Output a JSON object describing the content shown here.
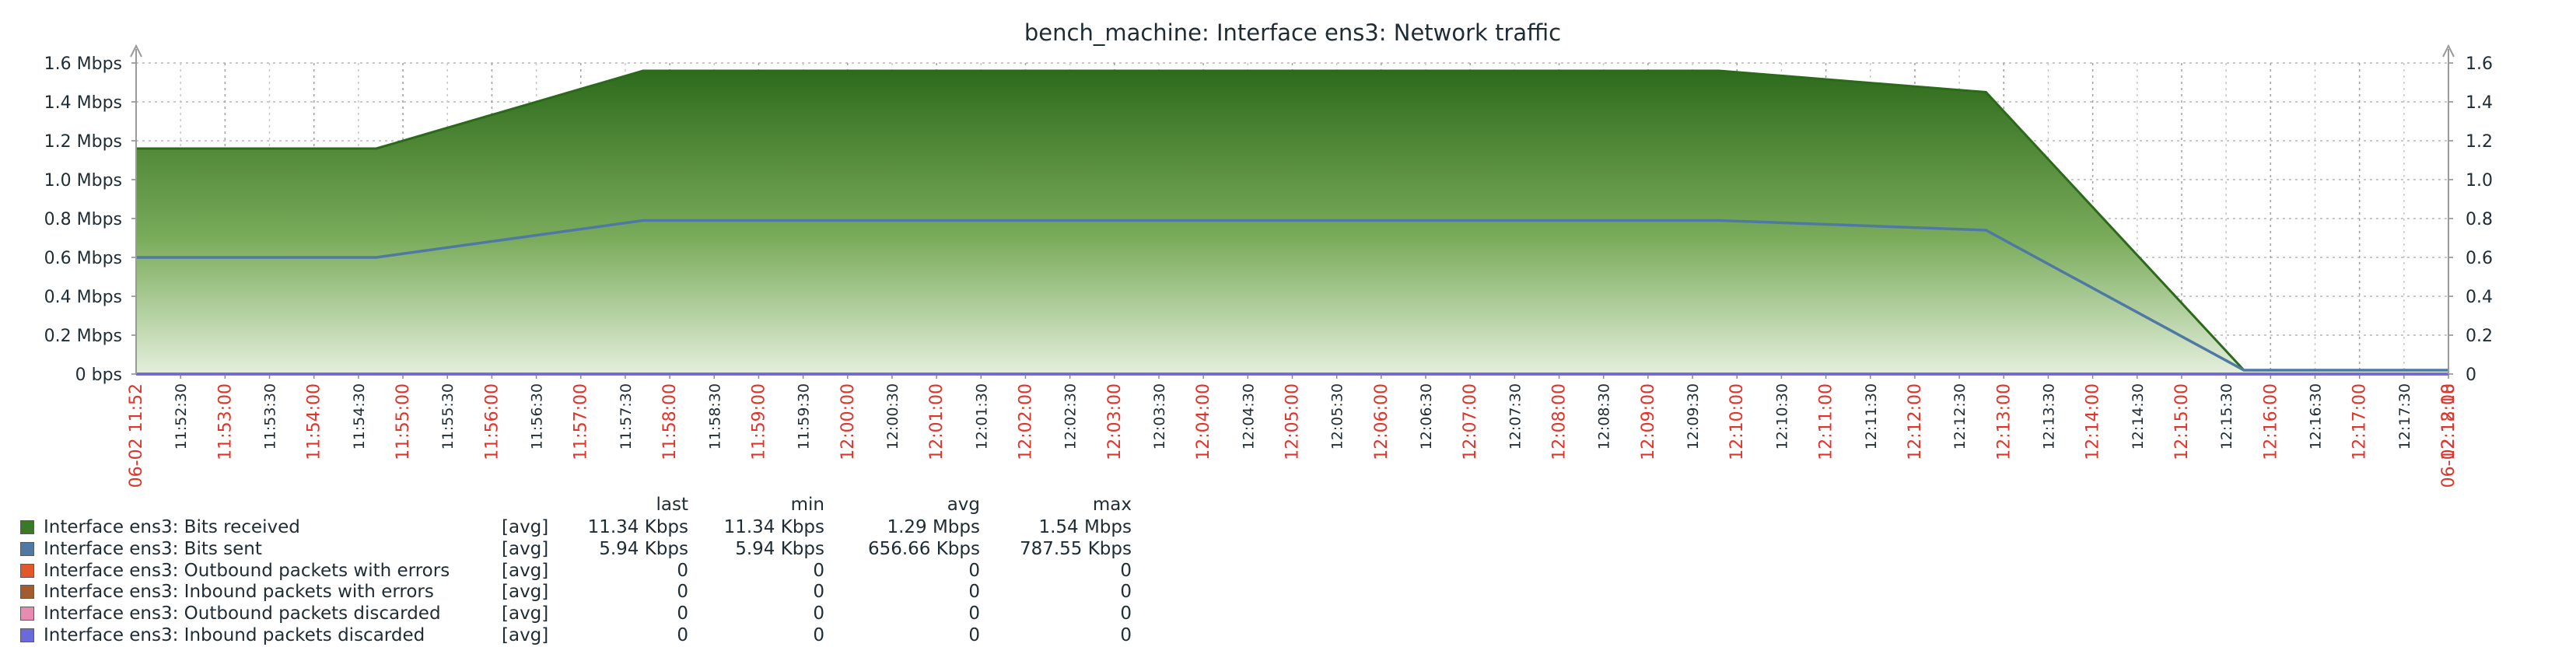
{
  "chart_data": {
    "type": "area",
    "title": "bench_machine: Interface ens3: Network traffic",
    "y_left": {
      "range_mbps": [
        0,
        1.6
      ],
      "tick_values": [
        0,
        0.2,
        0.4,
        0.6,
        0.8,
        1.0,
        1.2,
        1.4,
        1.6
      ],
      "tick_labels": [
        "0 bps",
        "0.2 Mbps",
        "0.4 Mbps",
        "0.6 Mbps",
        "0.8 Mbps",
        "1.0 Mbps",
        "1.2 Mbps",
        "1.4 Mbps",
        "1.6 Mbps"
      ]
    },
    "y_right": {
      "tick_labels": [
        "0",
        "0.2",
        "0.4",
        "0.6",
        "0.8",
        "1.0",
        "1.2",
        "1.4",
        "1.6"
      ]
    },
    "x_axis": {
      "start_label": "06-02 11:52",
      "end_label": "06-02 12:18",
      "start_minute": 0,
      "end_minute": 26,
      "tick_labels": [
        "11:52:30",
        "11:53:00",
        "11:53:30",
        "11:54:00",
        "11:54:30",
        "11:55:00",
        "11:55:30",
        "11:56:00",
        "11:56:30",
        "11:57:00",
        "11:57:30",
        "11:58:00",
        "11:58:30",
        "11:59:00",
        "11:59:30",
        "12:00:00",
        "12:00:30",
        "12:01:00",
        "12:01:30",
        "12:02:00",
        "12:02:30",
        "12:03:00",
        "12:03:30",
        "12:04:00",
        "12:04:30",
        "12:05:00",
        "12:05:30",
        "12:06:00",
        "12:06:30",
        "12:07:00",
        "12:07:30",
        "12:08:00",
        "12:08:30",
        "12:09:00",
        "12:09:30",
        "12:10:00",
        "12:10:30",
        "12:11:00",
        "12:11:30",
        "12:12:00",
        "12:12:30",
        "12:13:00",
        "12:13:30",
        "12:14:00",
        "12:14:30",
        "12:15:00",
        "12:15:30",
        "12:16:00",
        "12:16:30",
        "12:17:00",
        "12:17:30",
        "12:18:00"
      ]
    },
    "grid": true,
    "series": [
      {
        "name": "Interface ens3: Bits received",
        "color": "#3a7a26",
        "style": "filled-area",
        "points_mbps": [
          [
            0,
            1.16
          ],
          [
            2.7,
            1.16
          ],
          [
            5.7,
            1.56
          ],
          [
            10,
            1.56
          ],
          [
            12.5,
            1.56
          ],
          [
            17.8,
            1.56
          ],
          [
            20.8,
            1.45
          ],
          [
            23.7,
            0.02
          ],
          [
            26,
            0.02
          ]
        ]
      },
      {
        "name": "Interface ens3: Bits sent",
        "color": "#4f79a4",
        "style": "line",
        "points_mbps": [
          [
            0,
            0.6
          ],
          [
            2.7,
            0.6
          ],
          [
            5.7,
            0.79
          ],
          [
            17.8,
            0.79
          ],
          [
            20.8,
            0.74
          ],
          [
            23.7,
            0.02
          ],
          [
            26,
            0.02
          ]
        ]
      },
      {
        "name": "Interface ens3: Outbound packets with errors",
        "color": "#e2572b",
        "style": "line",
        "points_mbps": [
          [
            0,
            0
          ],
          [
            26,
            0
          ]
        ]
      },
      {
        "name": "Interface ens3: Inbound packets with errors",
        "color": "#a35c2e",
        "style": "line",
        "points_mbps": [
          [
            0,
            0
          ],
          [
            26,
            0
          ]
        ]
      },
      {
        "name": "Interface ens3: Outbound packets discarded",
        "color": "#e88bb0",
        "style": "line",
        "points_mbps": [
          [
            0,
            0
          ],
          [
            26,
            0
          ]
        ]
      },
      {
        "name": "Interface ens3: Inbound packets discarded",
        "color": "#6a6adb",
        "style": "line",
        "points_mbps": [
          [
            0,
            0
          ],
          [
            26,
            0
          ]
        ]
      }
    ]
  },
  "legend": {
    "columns": [
      "last",
      "min",
      "avg",
      "max"
    ],
    "rows": [
      {
        "name": "Interface ens3: Bits received",
        "func": "[avg]",
        "color": "#3a7a26",
        "last": "11.34 Kbps",
        "min": "11.34 Kbps",
        "avg": "1.29 Mbps",
        "max": "1.54 Mbps"
      },
      {
        "name": "Interface ens3: Bits sent",
        "func": "[avg]",
        "color": "#4f79a4",
        "last": "5.94 Kbps",
        "min": "5.94 Kbps",
        "avg": "656.66 Kbps",
        "max": "787.55 Kbps"
      },
      {
        "name": "Interface ens3: Outbound packets with errors",
        "func": "[avg]",
        "color": "#e2572b",
        "last": "0",
        "min": "0",
        "avg": "0",
        "max": "0"
      },
      {
        "name": "Interface ens3: Inbound packets with errors",
        "func": "[avg]",
        "color": "#a35c2e",
        "last": "0",
        "min": "0",
        "avg": "0",
        "max": "0"
      },
      {
        "name": "Interface ens3: Outbound packets discarded",
        "func": "[avg]",
        "color": "#e88bb0",
        "last": "0",
        "min": "0",
        "avg": "0",
        "max": "0"
      },
      {
        "name": "Interface ens3: Inbound packets discarded",
        "func": "[avg]",
        "color": "#6a6adb",
        "last": "0",
        "min": "0",
        "avg": "0",
        "max": "0"
      }
    ]
  }
}
